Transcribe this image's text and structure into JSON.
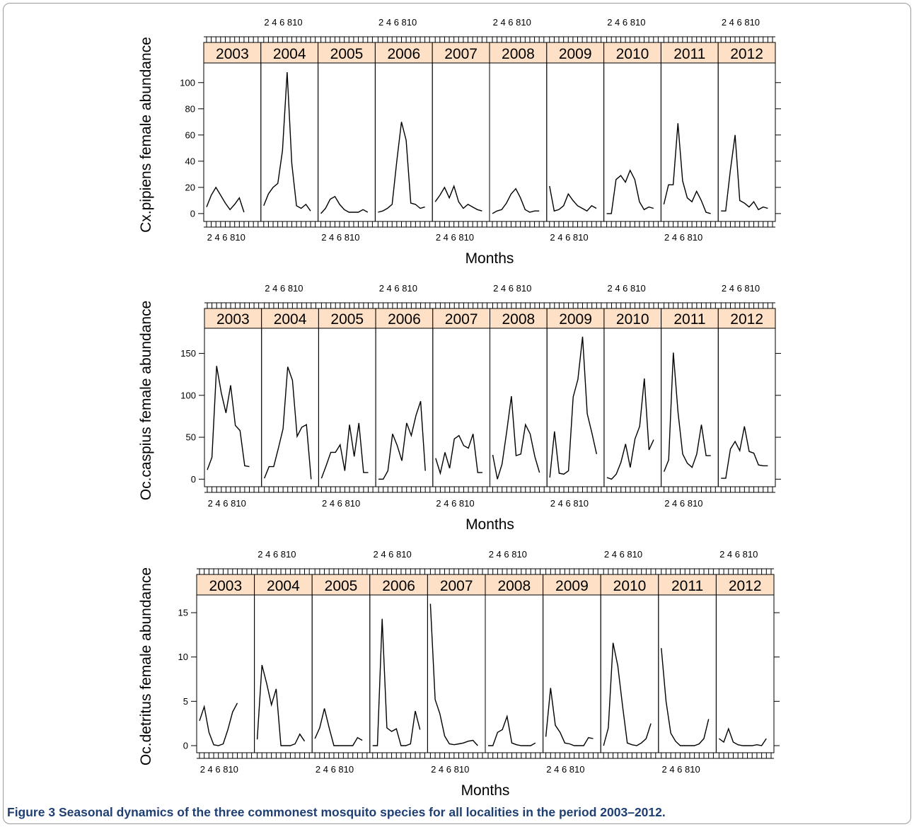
{
  "caption": {
    "label": "Figure 3",
    "text": "Seasonal dynamics of the three commonest mosquito species for all localities in the period 2003–2012."
  },
  "colors": {
    "strip_fill": "#fde0c5",
    "line": "#000000",
    "caption_text": "#1f3f73"
  },
  "chart_data": [
    {
      "type": "line",
      "ylabel": "Cx.pipiens female abundance",
      "xlabel": "Months",
      "x_ticks": [
        2,
        4,
        6,
        8,
        10
      ],
      "x_tick_labels": "2 4 6 810",
      "xlim": [
        1,
        12
      ],
      "ylim": [
        -6,
        115
      ],
      "y_ticks": [
        0,
        20,
        40,
        60,
        80,
        100
      ],
      "panels": [
        {
          "year": "2003",
          "x": [
            1,
            2,
            3,
            4,
            5,
            6,
            7,
            8,
            9
          ],
          "values": [
            5,
            14,
            20,
            14,
            8,
            3,
            7,
            12,
            1
          ]
        },
        {
          "year": "2004",
          "x": [
            1,
            2,
            3,
            4,
            5,
            6,
            7,
            8,
            9,
            10,
            11
          ],
          "values": [
            6,
            15,
            20,
            23,
            48,
            108,
            38,
            6,
            4,
            7,
            2
          ]
        },
        {
          "year": "2005",
          "x": [
            1,
            2,
            3,
            4,
            5,
            6,
            7,
            8,
            9,
            10,
            11
          ],
          "values": [
            0,
            4,
            11,
            13,
            7,
            3,
            1,
            1,
            1,
            3,
            1
          ]
        },
        {
          "year": "2006",
          "x": [
            1,
            2,
            3,
            4,
            5,
            6,
            7,
            8,
            9,
            10,
            11
          ],
          "values": [
            1,
            2,
            4,
            7,
            40,
            70,
            56,
            8,
            7,
            4,
            5
          ]
        },
        {
          "year": "2007",
          "x": [
            1,
            2,
            3,
            4,
            5,
            6,
            7,
            8,
            9,
            10,
            11
          ],
          "values": [
            9,
            14,
            20,
            12,
            21,
            9,
            4,
            7,
            5,
            3,
            2
          ]
        },
        {
          "year": "2008",
          "x": [
            1,
            2,
            3,
            4,
            5,
            6,
            7,
            8,
            9,
            10,
            11
          ],
          "values": [
            0,
            2,
            3,
            8,
            15,
            19,
            12,
            3,
            1,
            2,
            2
          ]
        },
        {
          "year": "2009",
          "x": [
            1,
            2,
            3,
            4,
            5,
            6,
            7,
            8,
            9,
            10,
            11
          ],
          "values": [
            21,
            2,
            3,
            6,
            15,
            10,
            6,
            4,
            2,
            6,
            4
          ]
        },
        {
          "year": "2010",
          "x": [
            1,
            2,
            3,
            4,
            5,
            6,
            7,
            8,
            9,
            10,
            11
          ],
          "values": [
            0,
            0,
            26,
            29,
            24,
            33,
            26,
            9,
            3,
            5,
            4
          ]
        },
        {
          "year": "2011",
          "x": [
            1,
            2,
            3,
            4,
            5,
            6,
            7,
            8,
            9,
            10,
            11
          ],
          "values": [
            7,
            22,
            22,
            69,
            25,
            12,
            9,
            17,
            10,
            1,
            0
          ]
        },
        {
          "year": "2012",
          "x": [
            1,
            2,
            3,
            4,
            5,
            6,
            7,
            8,
            9,
            10,
            11
          ],
          "values": [
            2,
            2,
            33,
            60,
            10,
            8,
            5,
            9,
            3,
            5,
            4
          ]
        }
      ]
    },
    {
      "type": "line",
      "ylabel": "Oc.caspius female abundance",
      "xlabel": "Months",
      "x_ticks": [
        2,
        4,
        6,
        8,
        10
      ],
      "x_tick_labels": "2 4 6 810",
      "xlim": [
        1,
        12
      ],
      "ylim": [
        -9,
        180
      ],
      "y_ticks": [
        0,
        50,
        100,
        150
      ],
      "panels": [
        {
          "year": "2003",
          "x": [
            1,
            2,
            3,
            4,
            5,
            6,
            7,
            8,
            9,
            10
          ],
          "values": [
            11,
            26,
            135,
            103,
            79,
            112,
            64,
            58,
            16,
            15
          ]
        },
        {
          "year": "2004",
          "x": [
            1,
            2,
            3,
            4,
            5,
            6,
            7,
            8,
            9,
            10,
            11
          ],
          "values": [
            1,
            15,
            15,
            37,
            60,
            134,
            118,
            51,
            62,
            65,
            0
          ]
        },
        {
          "year": "2005",
          "x": [
            1,
            2,
            3,
            4,
            5,
            6,
            7,
            8,
            9,
            10,
            11
          ],
          "values": [
            1,
            16,
            32,
            32,
            41,
            10,
            65,
            27,
            67,
            8,
            8
          ]
        },
        {
          "year": "2006",
          "x": [
            1,
            2,
            3,
            4,
            5,
            6,
            7,
            8,
            9,
            10,
            11
          ],
          "values": [
            0,
            0,
            10,
            54,
            40,
            22,
            67,
            52,
            76,
            93,
            10
          ]
        },
        {
          "year": "2007",
          "x": [
            1,
            2,
            3,
            4,
            5,
            6,
            7,
            8,
            9,
            10,
            11
          ],
          "values": [
            25,
            7,
            32,
            13,
            48,
            52,
            40,
            37,
            54,
            8,
            8
          ]
        },
        {
          "year": "2008",
          "x": [
            1,
            2,
            3,
            4,
            5,
            6,
            7,
            8,
            9,
            10,
            11
          ],
          "values": [
            29,
            0,
            18,
            57,
            99,
            28,
            30,
            65,
            54,
            27,
            8
          ]
        },
        {
          "year": "2009",
          "x": [
            1,
            2,
            3,
            4,
            5,
            6,
            7,
            8,
            9,
            10,
            11
          ],
          "values": [
            2,
            57,
            7,
            6,
            10,
            98,
            119,
            170,
            78,
            55,
            30
          ]
        },
        {
          "year": "2010",
          "x": [
            1,
            2,
            3,
            4,
            5,
            6,
            7,
            8,
            9,
            10,
            11
          ],
          "values": [
            2,
            0,
            6,
            20,
            42,
            14,
            48,
            63,
            120,
            35,
            47
          ]
        },
        {
          "year": "2011",
          "x": [
            1,
            2,
            3,
            4,
            5,
            6,
            7,
            8,
            9,
            10,
            11
          ],
          "values": [
            9,
            23,
            151,
            80,
            30,
            19,
            14,
            30,
            65,
            28,
            28
          ]
        },
        {
          "year": "2012",
          "x": [
            1,
            2,
            3,
            4,
            5,
            6,
            7,
            8,
            9,
            10,
            11
          ],
          "values": [
            1,
            1,
            36,
            45,
            34,
            63,
            33,
            31,
            17,
            16,
            16
          ]
        }
      ]
    },
    {
      "type": "line",
      "ylabel": "Oc.detritus female abundance",
      "xlabel": "Months",
      "x_ticks": [
        2,
        4,
        6,
        8,
        10
      ],
      "x_tick_labels": "2 4 6 810",
      "xlim": [
        1,
        12
      ],
      "ylim": [
        -0.8,
        17
      ],
      "y_ticks": [
        0,
        5,
        10,
        15
      ],
      "panels": [
        {
          "year": "2003",
          "x": [
            1,
            2,
            3,
            4,
            5,
            6,
            7,
            8,
            9
          ],
          "values": [
            2.8,
            4.4,
            1.5,
            0.1,
            0,
            0.2,
            1.8,
            3.8,
            4.8
          ]
        },
        {
          "year": "2004",
          "x": [
            1,
            2,
            3,
            4,
            5,
            6,
            7,
            8,
            9,
            10,
            11
          ],
          "values": [
            0.7,
            9.1,
            7,
            4.6,
            6.4,
            0,
            0,
            0,
            0.2,
            1.3,
            0.5
          ]
        },
        {
          "year": "2005",
          "x": [
            1,
            2,
            3,
            4,
            5,
            6,
            7,
            8,
            9,
            10,
            11
          ],
          "values": [
            0.8,
            2,
            4.2,
            2,
            0,
            0,
            0,
            0,
            0,
            0.9,
            0.6
          ]
        },
        {
          "year": "2006",
          "x": [
            1,
            2,
            3,
            4,
            5,
            6,
            7,
            8,
            9,
            10,
            11
          ],
          "values": [
            0,
            0,
            14.3,
            2,
            1.6,
            1.9,
            0,
            0,
            0.2,
            3.9,
            1.8
          ]
        },
        {
          "year": "2007",
          "x": [
            1,
            2,
            3,
            4,
            5,
            6,
            7,
            8,
            9,
            10,
            11
          ],
          "values": [
            16,
            5.2,
            3.6,
            1.1,
            0.2,
            0.1,
            0.2,
            0.3,
            0.5,
            0.6,
            0
          ]
        },
        {
          "year": "2008",
          "x": [
            1,
            2,
            3,
            4,
            5,
            6,
            7,
            8,
            9,
            10,
            11
          ],
          "values": [
            0,
            0,
            1.5,
            1.8,
            3.3,
            0.3,
            0.1,
            0,
            0,
            0,
            0.3
          ]
        },
        {
          "year": "2009",
          "x": [
            1,
            2,
            3,
            4,
            5,
            6,
            7,
            8,
            9,
            10,
            11
          ],
          "values": [
            1,
            6.5,
            2.3,
            1.5,
            0.3,
            0.2,
            0,
            0,
            0,
            0.9,
            0.8
          ]
        },
        {
          "year": "2010",
          "x": [
            1,
            2,
            3,
            4,
            5,
            6,
            7,
            8,
            9,
            10,
            11
          ],
          "values": [
            0,
            2,
            11.6,
            9,
            4.5,
            0.3,
            0.1,
            0,
            0.3,
            0.8,
            2.5
          ]
        },
        {
          "year": "2011",
          "x": [
            1,
            2,
            3,
            4,
            5,
            6,
            7,
            8,
            9,
            10,
            11
          ],
          "values": [
            11,
            5,
            1.4,
            0.5,
            0,
            0,
            0,
            0,
            0.2,
            0.8,
            3
          ]
        },
        {
          "year": "2012",
          "x": [
            1,
            2,
            3,
            4,
            5,
            6,
            7,
            8,
            9,
            10,
            11
          ],
          "values": [
            0.8,
            0.4,
            1.9,
            0.4,
            0.1,
            0,
            0,
            0,
            0.1,
            0,
            0.8
          ]
        }
      ]
    }
  ]
}
